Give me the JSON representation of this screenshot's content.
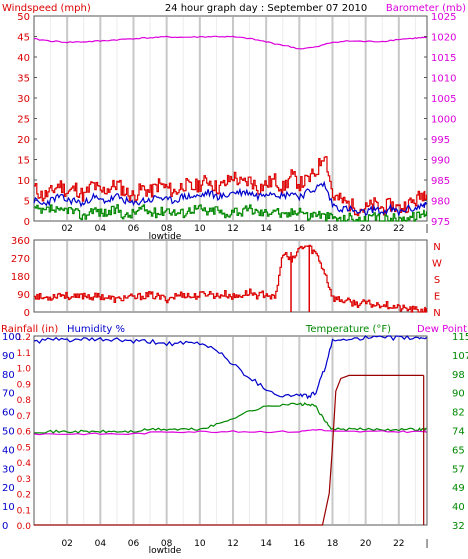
{
  "page": {
    "title": "24 hour graph day : September 07 2010",
    "background": "#ffffff"
  },
  "colors": {
    "red": "#dd0000",
    "blue": "#0000cc",
    "green": "#008800",
    "magenta": "#dd00dd",
    "darkred": "#990000",
    "grid": "#d8d8d8",
    "frame": "#555555"
  },
  "chart_data": [
    {
      "type": "line",
      "panel": "wind-barometer",
      "title": "24 hour graph day : September 07 2010",
      "left_label": "Windspeed (mph)",
      "right_label": "Barometer (mb)",
      "x_ticks": [
        "02",
        "04",
        "06",
        "08",
        "10",
        "12",
        "14",
        "16",
        "18",
        "20",
        "22"
      ],
      "x_axis_note": "lowtide",
      "x_range_hours": [
        0,
        23.7
      ],
      "left_ticks": [
        "0",
        "5",
        "10",
        "15",
        "20",
        "25",
        "30",
        "35",
        "40",
        "45",
        "50"
      ],
      "left_range": [
        0,
        50
      ],
      "right_ticks": [
        "975",
        "980",
        "985",
        "990",
        "995",
        "1000",
        "1005",
        "1010",
        "1015",
        "1020",
        "1025"
      ],
      "right_range": [
        975,
        1025
      ],
      "series": [
        {
          "color": "#dd0000",
          "axis": "left",
          "x": [
            0,
            0.5,
            1,
            1.5,
            2,
            2.5,
            3,
            3.5,
            4,
            4.5,
            5,
            5.5,
            6,
            6.5,
            7,
            7.5,
            8,
            8.5,
            9,
            9.5,
            10,
            10.5,
            11,
            11.5,
            12,
            12.5,
            13,
            13.5,
            14,
            14.5,
            15,
            15.5,
            16,
            16.5,
            17,
            17.5,
            18,
            18.5,
            19,
            19.5,
            20,
            20.5,
            21,
            21.5,
            22,
            22.5,
            23,
            23.5
          ],
          "values": [
            8,
            6,
            7,
            9,
            7,
            8,
            6,
            9,
            7,
            8,
            9,
            7,
            6,
            8,
            7,
            9,
            8,
            7,
            9,
            8,
            9,
            10,
            8,
            9,
            11,
            9,
            10,
            8,
            9,
            10,
            8,
            11,
            9,
            10,
            12,
            17,
            6,
            5,
            4,
            3,
            3,
            4,
            3,
            4,
            3,
            4,
            5,
            7
          ]
        },
        {
          "color": "#0000cc",
          "axis": "left",
          "x": [
            0,
            0.5,
            1,
            1.5,
            2,
            2.5,
            3,
            3.5,
            4,
            4.5,
            5,
            5.5,
            6,
            6.5,
            7,
            7.5,
            8,
            8.5,
            9,
            9.5,
            10,
            10.5,
            11,
            11.5,
            12,
            12.5,
            13,
            13.5,
            14,
            14.5,
            15,
            15.5,
            16,
            16.5,
            17,
            17.5,
            18,
            18.5,
            19,
            19.5,
            20,
            20.5,
            21,
            21.5,
            22,
            22.5,
            23,
            23.5
          ],
          "values": [
            5,
            4,
            5,
            6,
            5,
            5,
            4,
            6,
            5,
            5,
            6,
            5,
            4,
            5,
            5,
            6,
            5,
            5,
            6,
            6,
            6,
            7,
            6,
            6,
            7,
            7,
            7,
            6,
            7,
            7,
            6,
            7,
            6,
            7,
            8,
            9,
            4,
            3,
            3,
            2,
            2,
            3,
            2,
            3,
            2,
            3,
            3,
            4
          ]
        },
        {
          "color": "#008800",
          "axis": "left",
          "x": [
            0,
            0.5,
            1,
            1.5,
            2,
            2.5,
            3,
            3.5,
            4,
            4.5,
            5,
            5.5,
            6,
            6.5,
            7,
            7.5,
            8,
            8.5,
            9,
            9.5,
            10,
            10.5,
            11,
            11.5,
            12,
            12.5,
            13,
            13.5,
            14,
            14.5,
            15,
            15.5,
            16,
            16.5,
            17,
            17.5,
            18,
            18.5,
            19,
            19.5,
            20,
            20.5,
            21,
            21.5,
            22,
            22.5,
            23,
            23.5
          ],
          "values": [
            3,
            2,
            3,
            2,
            3,
            2,
            1,
            3,
            2,
            2,
            3,
            1,
            2,
            3,
            2,
            2,
            3,
            2,
            2,
            3,
            3,
            2,
            3,
            1,
            3,
            2,
            3,
            2,
            2,
            3,
            1,
            2,
            3,
            1,
            2,
            1,
            1,
            0,
            1,
            0,
            0,
            1,
            0,
            1,
            0,
            1,
            1,
            2
          ]
        },
        {
          "color": "#dd00dd",
          "axis": "right",
          "x": [
            0,
            1,
            2,
            3,
            4,
            5,
            6,
            7,
            8,
            9,
            10,
            11,
            12,
            13,
            14,
            15,
            16,
            17,
            18,
            19,
            20,
            21,
            22,
            23,
            23.5
          ],
          "values": [
            1019.4,
            1018.9,
            1018.6,
            1018.7,
            1018.9,
            1019.2,
            1019.5,
            1019.7,
            1019.9,
            1019.8,
            1019.9,
            1020.0,
            1019.9,
            1019.5,
            1018.7,
            1017.9,
            1017.0,
            1017.4,
            1018.6,
            1018.9,
            1018.8,
            1018.8,
            1019.3,
            1019.6,
            1019.7
          ]
        }
      ]
    },
    {
      "type": "line",
      "panel": "wind-direction",
      "left_ticks": [
        "0",
        "90",
        "180",
        "270",
        "360"
      ],
      "left_range": [
        0,
        360
      ],
      "right_ticks": [
        "N",
        "W",
        "S",
        "E",
        "N"
      ],
      "x_range_hours": [
        0,
        23.7
      ],
      "series": [
        {
          "color": "#dd0000",
          "x": [
            0,
            0.5,
            1,
            1.5,
            2,
            2.5,
            3,
            3.5,
            4,
            4.5,
            5,
            5.5,
            6,
            6.5,
            7,
            7.5,
            8,
            8.5,
            9,
            9.5,
            10,
            10.5,
            11,
            11.5,
            12,
            12.5,
            13,
            13.5,
            14,
            14.5,
            15,
            15.5,
            16,
            16.5,
            17,
            17.5,
            18,
            18.5,
            19,
            19.5,
            20,
            20.5,
            21,
            21.5,
            22,
            22.5,
            23,
            23.5
          ],
          "values": [
            85,
            70,
            75,
            90,
            80,
            70,
            85,
            75,
            80,
            70,
            60,
            75,
            70,
            80,
            85,
            75,
            65,
            80,
            90,
            75,
            85,
            95,
            80,
            90,
            75,
            85,
            100,
            80,
            95,
            60,
            300,
            250,
            320,
            330,
            290,
            200,
            70,
            60,
            50,
            40,
            45,
            35,
            40,
            30,
            20,
            15,
            10,
            5
          ]
        }
      ]
    },
    {
      "type": "line",
      "panel": "rain-humidity-temperature",
      "left_label": "Rainfall (in)",
      "left2_label": "Humidity %",
      "right_label": "Temperature (°F)",
      "right2_label": "Dew Point",
      "x_ticks": [
        "02",
        "04",
        "06",
        "08",
        "10",
        "12",
        "14",
        "16",
        "18",
        "20",
        "22"
      ],
      "x_axis_note": "lowtide",
      "x_range_hours": [
        0,
        23.7
      ],
      "rain_ticks": [
        "0.0",
        "0.1",
        "0.2",
        "0.3",
        "0.4",
        "0.5",
        "0.6",
        "0.7",
        "0.8",
        "0.9",
        "1.0",
        "1.1",
        "1.2"
      ],
      "rain_range": [
        0,
        1.2
      ],
      "humidity_ticks": [
        "0",
        "10",
        "20",
        "30",
        "40",
        "50",
        "60",
        "70",
        "80",
        "90",
        "100"
      ],
      "humidity_range": [
        0,
        100
      ],
      "temp_ticks": [
        "32",
        "40",
        "49",
        "57",
        "65",
        "74",
        "82",
        "90",
        "98",
        "107",
        "115"
      ],
      "temp_range": [
        32,
        115
      ],
      "series": [
        {
          "name": "Humidity %",
          "color": "#0000cc",
          "axis": "humidity",
          "x": [
            0,
            1,
            2,
            3,
            4,
            5,
            6,
            7,
            8,
            9,
            10,
            11,
            12,
            13,
            14,
            15,
            16,
            16.5,
            17,
            17.5,
            18,
            19,
            20,
            21,
            22,
            23,
            23.5
          ],
          "values": [
            97,
            98,
            98,
            98,
            98,
            98,
            97,
            97,
            96,
            96,
            96,
            93,
            85,
            78,
            72,
            68,
            69,
            68,
            70,
            82,
            97,
            99,
            99,
            99,
            99,
            99,
            99
          ]
        },
        {
          "name": "Temperature (°F)",
          "color": "#008800",
          "axis": "temp",
          "x": [
            0,
            1,
            2,
            3,
            4,
            5,
            6,
            7,
            8,
            9,
            10,
            11,
            12,
            13,
            14,
            15,
            16,
            16.5,
            17,
            17.5,
            18,
            19,
            20,
            21,
            22,
            23,
            23.5
          ],
          "values": [
            73,
            73,
            73,
            73,
            73,
            73,
            73,
            74,
            74,
            74,
            74,
            76,
            79,
            82,
            84,
            85,
            85,
            85,
            84,
            78,
            74,
            74,
            74,
            74,
            74,
            74,
            74
          ]
        },
        {
          "name": "Dew Point",
          "color": "#dd00dd",
          "axis": "temp",
          "x": [
            0,
            2,
            4,
            6,
            8,
            10,
            12,
            14,
            16,
            17,
            18,
            20,
            22,
            23.5
          ],
          "values": [
            72,
            72,
            72,
            72,
            73,
            73,
            73,
            73,
            73,
            74,
            73,
            73,
            73,
            73
          ]
        },
        {
          "name": "Rainfall (in)",
          "color": "#990000",
          "axis": "rain",
          "x": [
            0,
            17,
            17.4,
            17.8,
            18.0,
            18.2,
            18.5,
            19,
            23.5
          ],
          "values": [
            0,
            0,
            0,
            0.2,
            0.5,
            0.85,
            0.93,
            0.95,
            0.95
          ]
        }
      ]
    }
  ]
}
